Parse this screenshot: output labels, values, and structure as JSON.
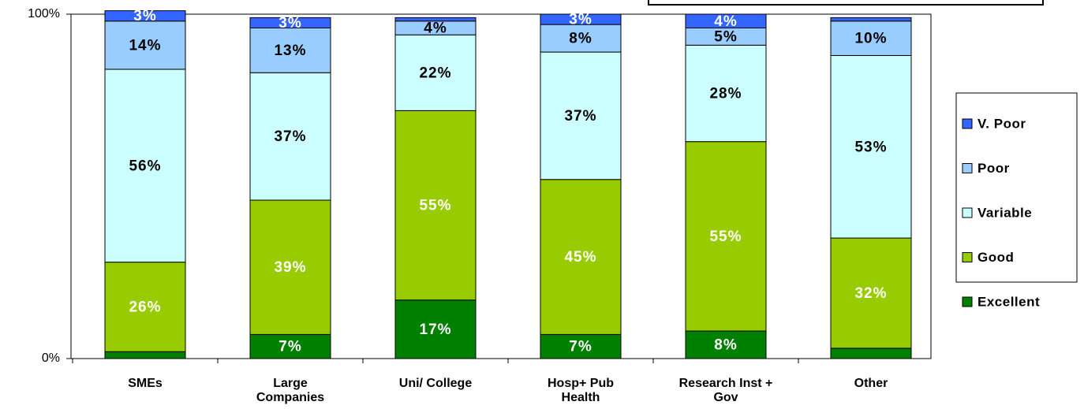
{
  "chart_data": {
    "type": "stacked_bar",
    "categories": [
      "SMEs",
      "Large Companies",
      "Uni/ College",
      "Hosp+ Pub Health",
      "Research Inst + Gov",
      "Other"
    ],
    "series": [
      {
        "name": "Excellent",
        "color": "#008000",
        "values": [
          2,
          7,
          17,
          7,
          8,
          3
        ],
        "value_labels": [
          null,
          "7%",
          "17%",
          "7%",
          "8%",
          null
        ]
      },
      {
        "name": "Good",
        "color": "#99cc00",
        "values": [
          26,
          39,
          55,
          45,
          55,
          32
        ],
        "value_labels": [
          "26%",
          "39%",
          "55%",
          "45%",
          "55%",
          "32%"
        ]
      },
      {
        "name": "Variable",
        "color": "#ccffff",
        "values": [
          56,
          37,
          22,
          37,
          28,
          53
        ],
        "value_labels": [
          "56%",
          "37%",
          "22%",
          "37%",
          "28%",
          "53%"
        ]
      },
      {
        "name": "Poor",
        "color": "#99ccff",
        "values": [
          14,
          13,
          4,
          8,
          5,
          10
        ],
        "value_labels": [
          "14%",
          "13%",
          "4%",
          "8%",
          "5%",
          "10%"
        ]
      },
      {
        "name": "V. Poor",
        "color": "#3366ff",
        "values": [
          3,
          3,
          1,
          3,
          4,
          1
        ],
        "value_labels": [
          "3%",
          "3%",
          null,
          "3%",
          "4%",
          null
        ]
      }
    ],
    "ylim": [
      0,
      100
    ],
    "yticks": [
      {
        "value": 0,
        "label": "0%"
      },
      {
        "value": 100,
        "label": "100%"
      }
    ],
    "legend": "right"
  }
}
